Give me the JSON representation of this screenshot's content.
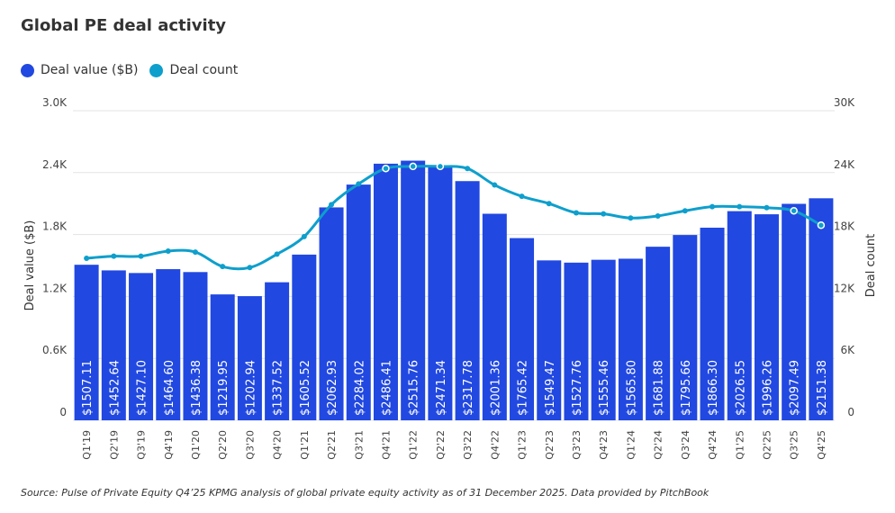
{
  "title": "Global PE deal activity",
  "source": "Source: Pulse of Private Equity Q4’25 KPMG analysis of global private equity activity as of 31 December 2025. Data provided by PitchBook",
  "colors": {
    "deal_value": "#2148E0",
    "deal_count": "#0E9FCC"
  },
  "chart_data": {
    "type": "bar",
    "title": "Global PE deal activity",
    "categories": [
      "Q1'19",
      "Q2'19",
      "Q3'19",
      "Q4'19",
      "Q1'20",
      "Q2'20",
      "Q3'20",
      "Q4'20",
      "Q1'21",
      "Q2'21",
      "Q3'21",
      "Q4'21",
      "Q1'22",
      "Q2'22",
      "Q3'22",
      "Q4'22",
      "Q1'23",
      "Q2'23",
      "Q3'23",
      "Q4'23",
      "Q1'24",
      "Q2'24",
      "Q3'24",
      "Q4'24",
      "Q1'25",
      "Q2'25",
      "Q3'25",
      "Q4'25"
    ],
    "series": [
      {
        "name": "Deal value ($B)",
        "type": "bar",
        "axis": "left",
        "values": [
          1507.11,
          1452.64,
          1427.1,
          1464.6,
          1436.38,
          1219.95,
          1202.94,
          1337.52,
          1605.52,
          2062.93,
          2284.02,
          2486.41,
          2515.76,
          2471.34,
          2317.78,
          2001.36,
          1765.42,
          1549.47,
          1527.76,
          1555.46,
          1565.8,
          1681.88,
          1795.66,
          1866.3,
          2026.55,
          1996.26,
          2097.49,
          2151.38
        ],
        "labels": [
          "$1507.11",
          "$1452.64",
          "$1427.10",
          "$1464.60",
          "$1436.38",
          "$1219.95",
          "$1202.94",
          "$1337.52",
          "$1605.52",
          "$2062.93",
          "$2284.02",
          "$2486.41",
          "$2515.76",
          "$2471.34",
          "$2317.78",
          "$2001.36",
          "$1765.42",
          "$1549.47",
          "$1527.76",
          "$1555.46",
          "$1565.80",
          "$1681.88",
          "$1795.66",
          "$1866.30",
          "$2026.55",
          "$1996.26",
          "$2097.49",
          "$2151.38"
        ]
      },
      {
        "name": "Deal count",
        "type": "line",
        "axis": "right",
        "values": [
          15700,
          15900,
          15900,
          16400,
          16300,
          14900,
          14800,
          16100,
          17800,
          20900,
          22900,
          24400,
          24600,
          24600,
          24400,
          22800,
          21700,
          21000,
          20100,
          20000,
          19600,
          19800,
          20300,
          20700,
          20700,
          20600,
          20300,
          18900
        ]
      }
    ],
    "ylabel": "Deal value ($B)",
    "y2label": "Deal count",
    "ylim": [
      0,
      3000
    ],
    "y2lim": [
      0,
      30000
    ],
    "yticks": [
      "0",
      "0.6K",
      "1.2K",
      "1.8K",
      "2.4K",
      "3.0K"
    ],
    "y2ticks": [
      "0",
      "6K",
      "12K",
      "18K",
      "24K",
      "30K"
    ],
    "grid": true,
    "legend": "top-left"
  }
}
